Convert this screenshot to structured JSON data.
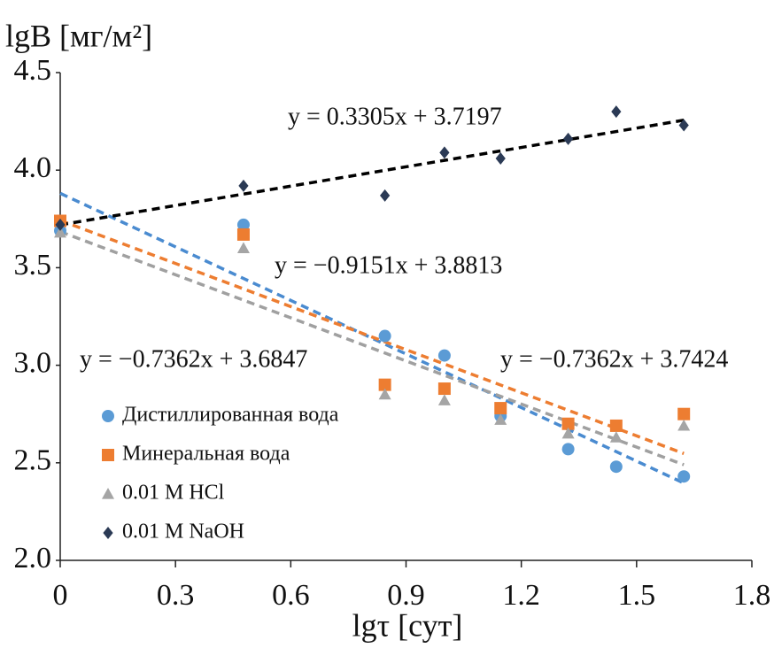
{
  "chart_data": {
    "type": "scatter",
    "y_label": "lgB [мг/м²]",
    "x_label": "lgτ [сут]",
    "x": [
      0,
      0.477,
      0.845,
      1.0,
      1.146,
      1.322,
      1.447,
      1.623
    ],
    "series": [
      {
        "name": "Дистиллированная вода",
        "color": "#5b9bd5",
        "marker": "circle",
        "trend_color": "#4a8bd0",
        "values": [
          3.69,
          3.72,
          3.15,
          3.05,
          2.74,
          2.57,
          2.48,
          2.43
        ],
        "trendline": {
          "slope": -0.9151,
          "intercept": 3.8813,
          "label": "y = −0.9151x + 3.8813"
        }
      },
      {
        "name": "Минеральная вода",
        "color": "#ed7d31",
        "marker": "square",
        "trend_color": "#ed7d31",
        "values": [
          3.74,
          3.67,
          2.9,
          2.88,
          2.78,
          2.7,
          2.69,
          2.75
        ],
        "trendline": {
          "slope": -0.7362,
          "intercept": 3.7424,
          "label": "y = −0.7362x + 3.7424"
        }
      },
      {
        "name": "0.01 M HCl",
        "color": "#a5a5a5",
        "marker": "triangle",
        "trend_color": "#a0a0a0",
        "values": [
          3.68,
          3.6,
          2.85,
          2.82,
          2.72,
          2.65,
          2.63,
          2.69
        ],
        "trendline": {
          "slope": -0.7362,
          "intercept": 3.6847,
          "label": "y = −0.7362x + 3.6847"
        }
      },
      {
        "name": "0.01 M NaOH",
        "color": "#2b3a55",
        "marker": "diamond",
        "trend_color": "#000000",
        "values": [
          3.72,
          3.92,
          3.87,
          4.09,
          4.06,
          4.16,
          4.3,
          4.23
        ],
        "trendline": {
          "slope": 0.3305,
          "intercept": 3.7197,
          "label": "y = 0.3305x + 3.7197"
        }
      }
    ],
    "xlim": [
      0,
      1.8
    ],
    "xticks": [
      0,
      0.3,
      0.6,
      0.9,
      1.2,
      1.5,
      1.8
    ],
    "ylim": [
      2,
      4.5
    ],
    "yticks": [
      {
        "value": 2,
        "label": "2.0"
      },
      2.5,
      {
        "value": 3,
        "label": "3.0"
      },
      3.5,
      {
        "value": 4,
        "label": "4.0"
      },
      4.5
    ],
    "grid": false,
    "legend": "lower left"
  }
}
